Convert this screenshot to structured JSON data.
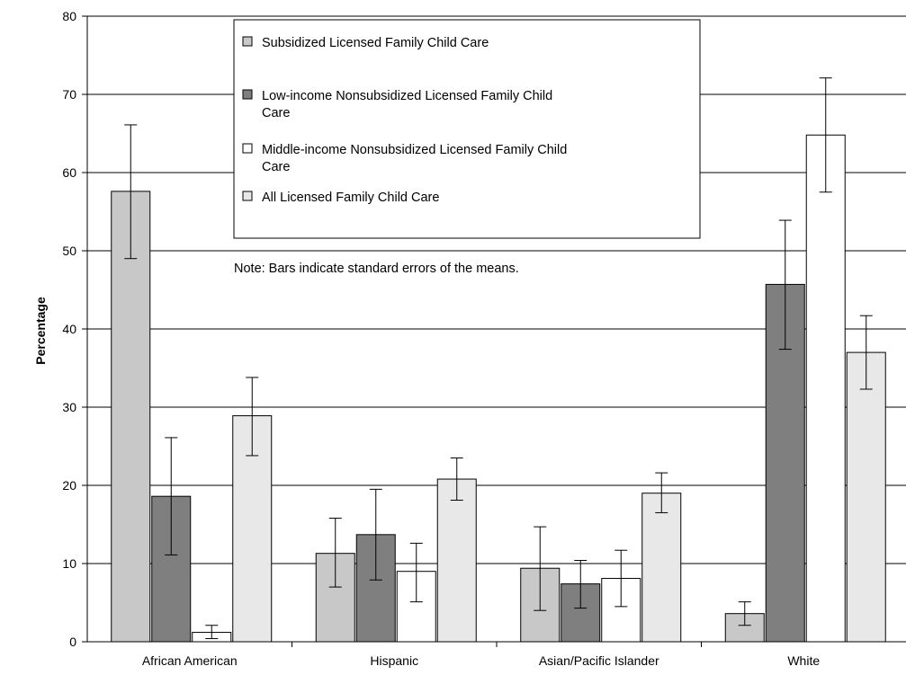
{
  "chart_data": {
    "type": "bar",
    "title": "",
    "xlabel": "",
    "ylabel": "Percentage",
    "ylim": [
      0,
      80
    ],
    "yticks": [
      0,
      10,
      20,
      30,
      40,
      50,
      60,
      70,
      80
    ],
    "grid": true,
    "legend_position": "top-center",
    "categories": [
      "African American",
      "Hispanic",
      "Asian/Pacific Islander",
      "White"
    ],
    "series": [
      {
        "name": "Subsidized Licensed Family Child Care",
        "color": "#c8c8c8",
        "values": [
          57.6,
          11.3,
          9.4,
          3.6
        ],
        "err_low": [
          49.0,
          7.0,
          4.0,
          2.1
        ],
        "err_high": [
          66.1,
          15.8,
          14.7,
          5.1
        ]
      },
      {
        "name": "Low-income Nonsubsidized Licensed Family Child Care",
        "color": "#7f7f7f",
        "values": [
          18.6,
          13.7,
          7.4,
          45.7
        ],
        "err_low": [
          11.1,
          7.9,
          4.3,
          37.4
        ],
        "err_high": [
          26.1,
          19.5,
          10.4,
          53.9
        ]
      },
      {
        "name": "Middle-income Nonsubsidized Licensed Family Child Care",
        "color": "#ffffff",
        "values": [
          1.2,
          9.0,
          8.1,
          64.8
        ],
        "err_low": [
          0.4,
          5.1,
          4.5,
          57.5
        ],
        "err_high": [
          2.1,
          12.6,
          11.7,
          72.1
        ]
      },
      {
        "name": "All Licensed Family Child Care",
        "color": "#e8e8e8",
        "values": [
          28.9,
          20.8,
          19.0,
          37.0
        ],
        "err_low": [
          23.8,
          18.1,
          16.5,
          32.3
        ],
        "err_high": [
          33.8,
          23.5,
          21.6,
          41.7
        ]
      }
    ],
    "annotation": "Note:  Bars indicate standard errors of the means."
  }
}
